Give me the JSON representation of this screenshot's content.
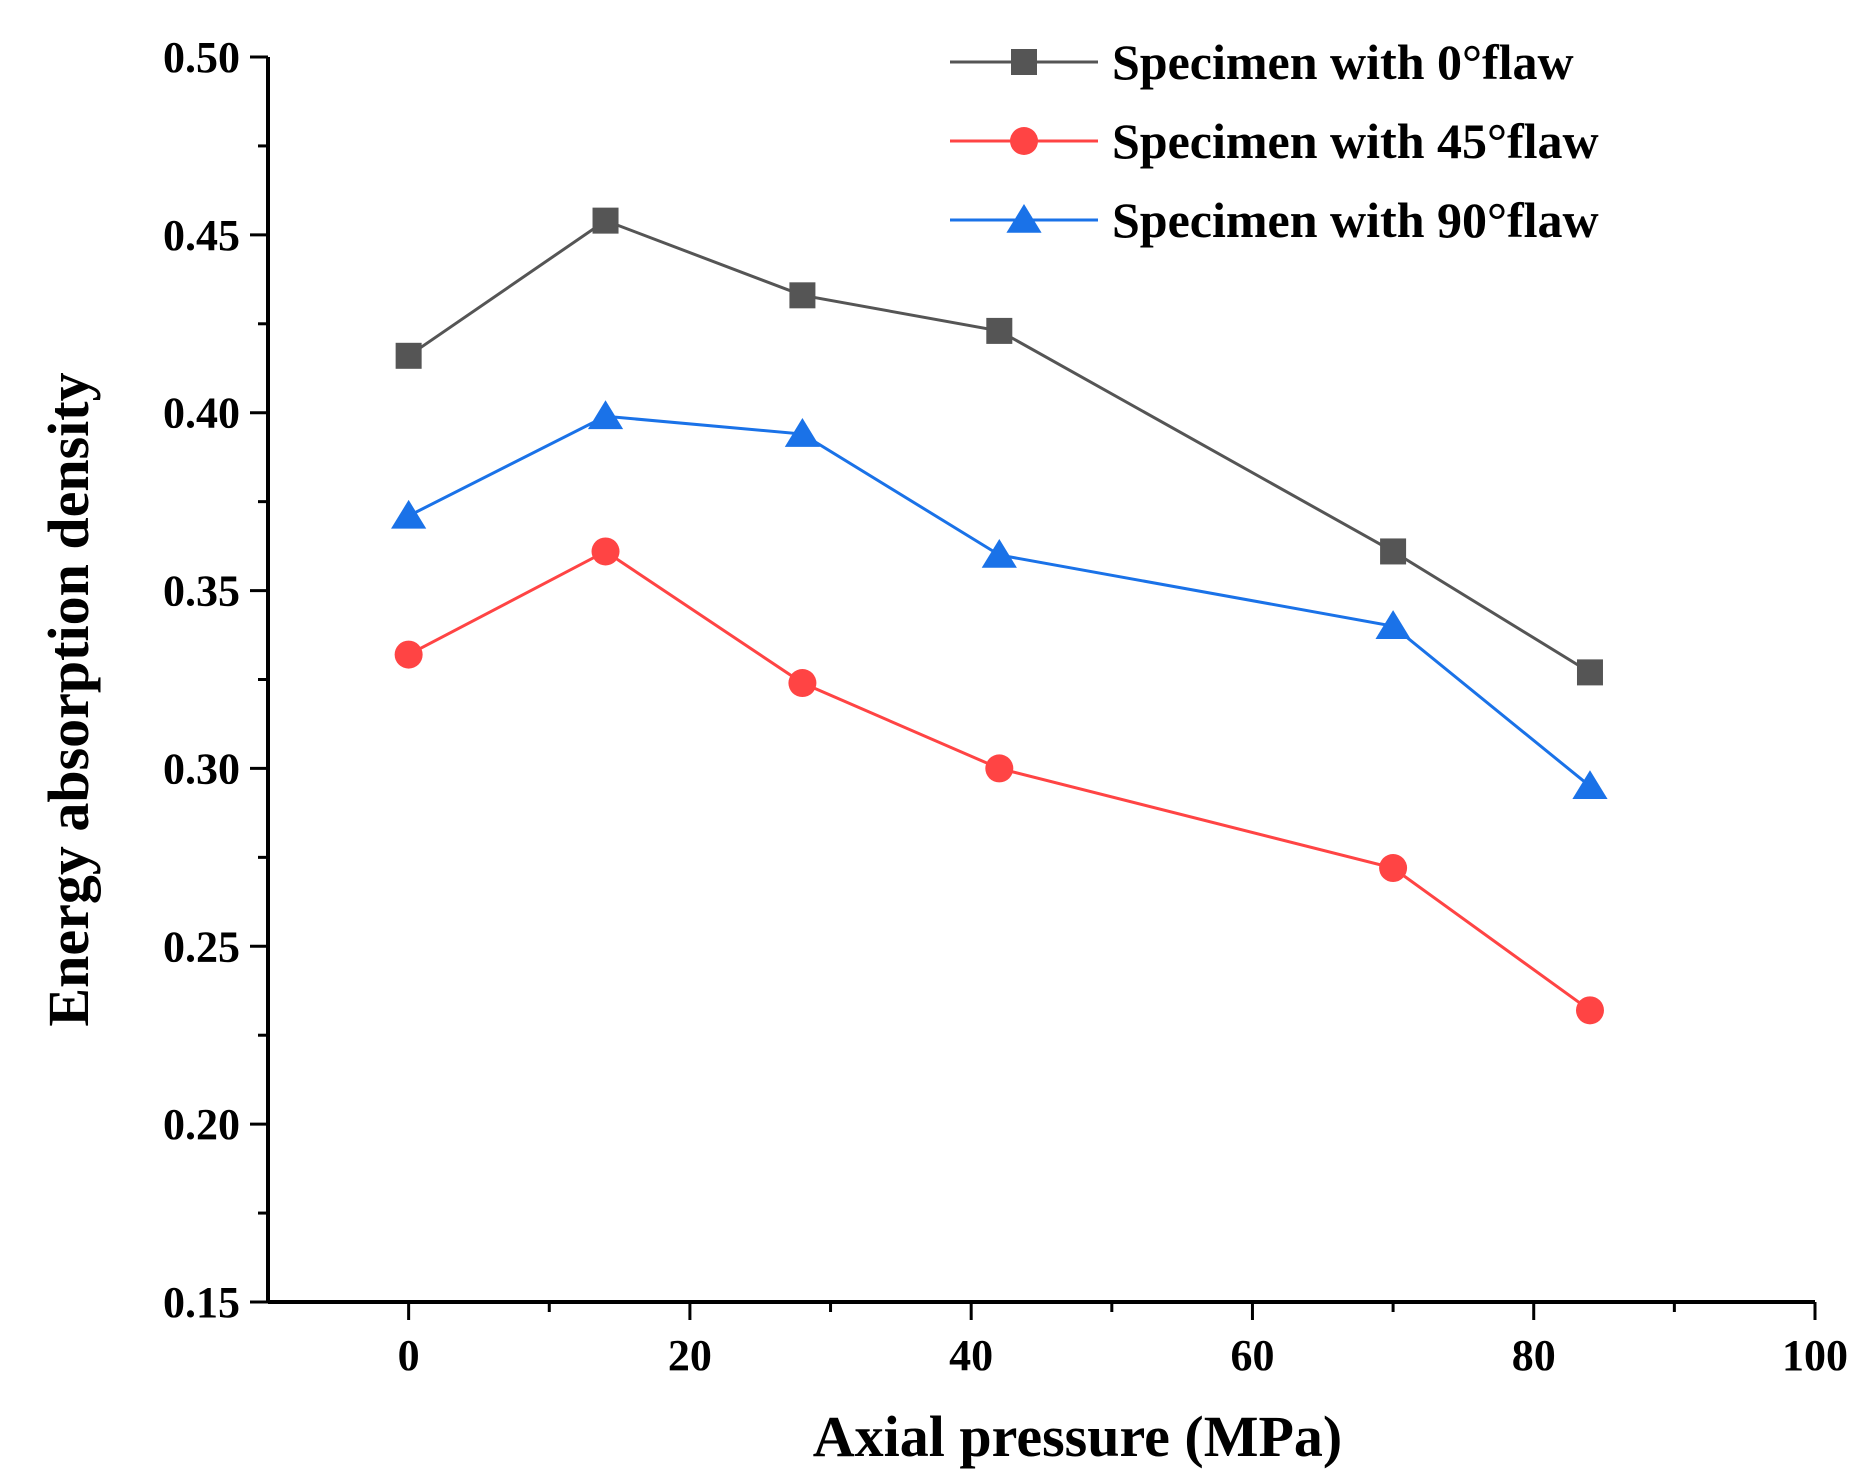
{
  "chart_data": {
    "type": "line",
    "xlabel": "Axial pressure (MPa)",
    "ylabel": "Energy absorption density",
    "xlim": [
      -10,
      100
    ],
    "ylim": [
      0.15,
      0.5
    ],
    "xticks": [
      0,
      20,
      40,
      60,
      80,
      100
    ],
    "xtick_labels": [
      "0",
      "20",
      "40",
      "60",
      "80",
      "100"
    ],
    "yticks": [
      0.15,
      0.2,
      0.25,
      0.3,
      0.35,
      0.4,
      0.45,
      0.5
    ],
    "ytick_labels": [
      "0.15",
      "0.20",
      "0.25",
      "0.30",
      "0.35",
      "0.40",
      "0.45",
      "0.50"
    ],
    "grid": false,
    "legend_position": "top-right",
    "x": [
      0,
      14,
      28,
      42,
      70,
      84
    ],
    "series": [
      {
        "name": "Specimen with 0°flaw",
        "color": "#555555",
        "marker": "square",
        "values": [
          0.416,
          0.454,
          0.433,
          0.423,
          0.361,
          0.327
        ]
      },
      {
        "name": "Specimen with 45°flaw",
        "color": "#ff4444",
        "marker": "circle",
        "values": [
          0.332,
          0.361,
          0.324,
          0.3,
          0.272,
          0.232
        ]
      },
      {
        "name": "Specimen with 90°flaw",
        "color": "#1a72e8",
        "marker": "triangle",
        "values": [
          0.371,
          0.399,
          0.394,
          0.36,
          0.34,
          0.295
        ]
      }
    ]
  }
}
